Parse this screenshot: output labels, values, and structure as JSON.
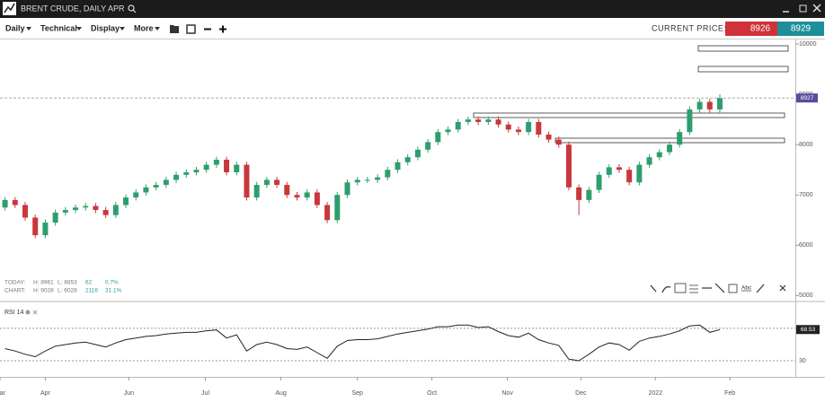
{
  "header": {
    "title": "BRENT CRUDE, DAILY APR"
  },
  "toolbar": {
    "menus": [
      "Daily",
      "Technical",
      "Display",
      "More"
    ],
    "current_price_label": "CURRENT PRICE:",
    "bid": 8926,
    "ask": 8929
  },
  "info": {
    "today": {
      "label": "TODAY:",
      "high": "H: 8961",
      "low": "L: 8853",
      "change": "62",
      "percent": "0.7%"
    },
    "chart": {
      "label": "CHART:",
      "high": "H: 9028",
      "low": "L: 6028",
      "change": "2116",
      "percent": "31.1%"
    }
  },
  "drawing_tools": {
    "text_tool": "Abc"
  },
  "chart_data": [
    {
      "type": "candlestick",
      "up_color": "#2e9e6e",
      "down_color": "#c8383c",
      "open": [
        6750,
        6900,
        6800,
        6550,
        6200,
        6450,
        6650,
        6700,
        6750,
        6780,
        6700,
        6600,
        6800,
        6950,
        7050,
        7150,
        7200,
        7300,
        7400,
        7450,
        7500,
        7600,
        7700,
        7450,
        7600,
        6950,
        7200,
        7300,
        7200,
        7000,
        6950,
        7050,
        6800,
        6500,
        7000,
        7250,
        7300,
        7300,
        7350,
        7500,
        7650,
        7750,
        7900,
        8050,
        8250,
        8300,
        8450,
        8500,
        8450,
        8500,
        8400,
        8300,
        8250,
        8450,
        8200,
        8100,
        8000,
        7150,
        6900,
        7100,
        7400,
        7550,
        7500,
        7250,
        7600,
        7750,
        7850,
        8000,
        8250,
        8700,
        8850,
        8700
      ],
      "high": [
        6960,
        6960,
        6860,
        6610,
        6510,
        6710,
        6760,
        6810,
        6840,
        6840,
        6760,
        6860,
        7010,
        7110,
        7210,
        7260,
        7360,
        7460,
        7510,
        7560,
        7660,
        7760,
        7760,
        7660,
        7660,
        7260,
        7360,
        7360,
        7260,
        7060,
        7110,
        7110,
        6860,
        7060,
        7310,
        7360,
        7360,
        7410,
        7560,
        7710,
        7810,
        7960,
        8110,
        8310,
        8360,
        8510,
        8560,
        8560,
        8560,
        8560,
        8460,
        8360,
        8510,
        8510,
        8260,
        8160,
        8060,
        7210,
        7160,
        7460,
        7610,
        7610,
        7560,
        7660,
        7810,
        7910,
        8060,
        8310,
        8760,
        8910,
        8910,
        9000
      ],
      "low": [
        6690,
        6740,
        6490,
        6140,
        6140,
        6390,
        6590,
        6640,
        6690,
        6640,
        6540,
        6540,
        6740,
        6890,
        6990,
        7090,
        7140,
        7240,
        7340,
        7390,
        7440,
        7540,
        7390,
        7390,
        6890,
        6890,
        7140,
        7140,
        6940,
        6890,
        6890,
        6740,
        6440,
        6440,
        6940,
        7190,
        7240,
        7240,
        7290,
        7440,
        7590,
        7690,
        7840,
        7990,
        8190,
        8240,
        8390,
        8390,
        8390,
        8340,
        8240,
        8190,
        8190,
        8140,
        8040,
        7940,
        7090,
        6600,
        6840,
        7040,
        7340,
        7440,
        7190,
        7190,
        7540,
        7690,
        7790,
        7940,
        8190,
        8640,
        8640,
        8640
      ],
      "close": [
        6900,
        6800,
        6550,
        6200,
        6450,
        6650,
        6700,
        6750,
        6780,
        6700,
        6600,
        6800,
        6950,
        7050,
        7150,
        7200,
        7300,
        7400,
        7450,
        7500,
        7600,
        7700,
        7450,
        7600,
        6950,
        7200,
        7300,
        7200,
        7000,
        6950,
        7050,
        6800,
        6500,
        7000,
        7250,
        7300,
        7300,
        7350,
        7500,
        7650,
        7750,
        7900,
        8050,
        8250,
        8300,
        8450,
        8500,
        8450,
        8500,
        8400,
        8300,
        8250,
        8450,
        8200,
        8100,
        8000,
        7150,
        6900,
        7100,
        7400,
        7550,
        7500,
        7250,
        7600,
        7750,
        7850,
        8000,
        8250,
        8700,
        8850,
        8700,
        8930
      ],
      "last_price": 8927,
      "xlim": [
        -0.5,
        78.5
      ],
      "xticks": [
        {
          "value": -0.5,
          "label": "Mar"
        },
        {
          "value": 4,
          "label": "Apr"
        },
        {
          "value": 12.3,
          "label": "Jun"
        },
        {
          "value": 19.9,
          "label": "Jul"
        },
        {
          "value": 27.4,
          "label": "Aug"
        },
        {
          "value": 35,
          "label": "Sep"
        },
        {
          "value": 42.4,
          "label": "Oct"
        },
        {
          "value": 49.9,
          "label": "Nov"
        },
        {
          "value": 57.2,
          "label": "Dec"
        },
        {
          "value": 64.6,
          "label": "2022"
        },
        {
          "value": 72,
          "label": "Feb"
        }
      ],
      "ylim": [
        4900,
        10090
      ],
      "yticks": [
        5000,
        6000,
        7000,
        8000,
        9000,
        10000
      ]
    },
    {
      "type": "line",
      "title": "RSI 14",
      "color": "#222222",
      "values": [
        45,
        42,
        38,
        35,
        42,
        48,
        50,
        52,
        53,
        50,
        47,
        52,
        56,
        58,
        60,
        61,
        63,
        64,
        65,
        65,
        67,
        68,
        58,
        62,
        42,
        50,
        53,
        50,
        45,
        44,
        47,
        40,
        33,
        48,
        55,
        56,
        56,
        57,
        60,
        63,
        65,
        67,
        69,
        72,
        72,
        74,
        74,
        71,
        72,
        66,
        61,
        59,
        64,
        56,
        52,
        49,
        32,
        30,
        38,
        47,
        52,
        50,
        43,
        54,
        58,
        60,
        63,
        67,
        73,
        74,
        65,
        68.53
      ],
      "xlim": [
        -0.5,
        78.5
      ],
      "ylim": [
        10,
        101
      ],
      "yticks": [
        30,
        70
      ]
    }
  ]
}
